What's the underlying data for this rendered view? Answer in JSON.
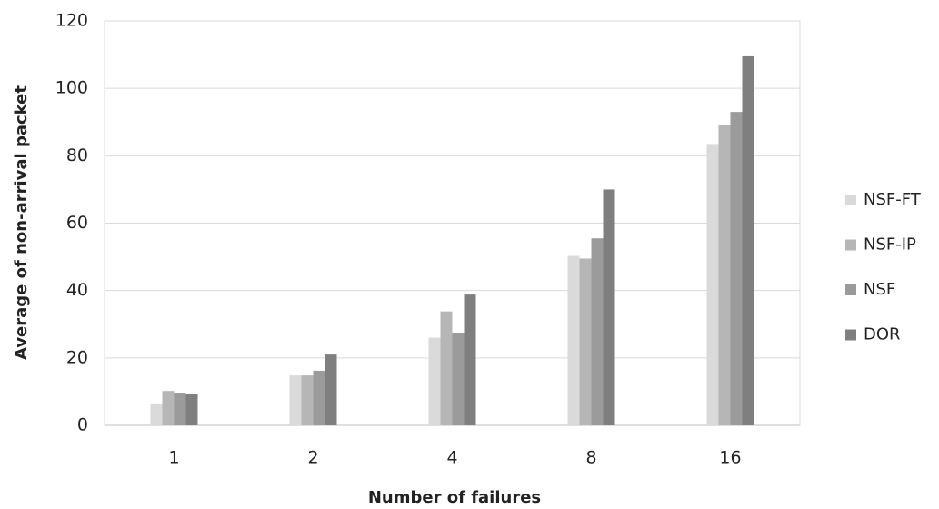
{
  "chart_data": {
    "type": "bar",
    "x_label": "Number of failures",
    "y_label": "Average of non-arrival packet",
    "categories": [
      "1",
      "2",
      "4",
      "8",
      "16"
    ],
    "series": [
      {
        "name": "NSF-FT",
        "color": "#dadada",
        "values": [
          6.5,
          14.8,
          26,
          50.3,
          83.5
        ]
      },
      {
        "name": "NSF-IP",
        "color": "#b6b6b6",
        "values": [
          10.2,
          14.8,
          33.8,
          49.5,
          89
        ]
      },
      {
        "name": "NSF",
        "color": "#9b9b9b",
        "values": [
          9.7,
          16.2,
          27.5,
          55.5,
          93
        ]
      },
      {
        "name": "DOR",
        "color": "#7f7f7f",
        "values": [
          9.2,
          21,
          38.8,
          70,
          109.5
        ]
      }
    ],
    "ylim": [
      0,
      120
    ],
    "yticks": [
      0,
      20,
      40,
      60,
      80,
      100,
      120
    ],
    "grid": true,
    "legend": "right"
  }
}
